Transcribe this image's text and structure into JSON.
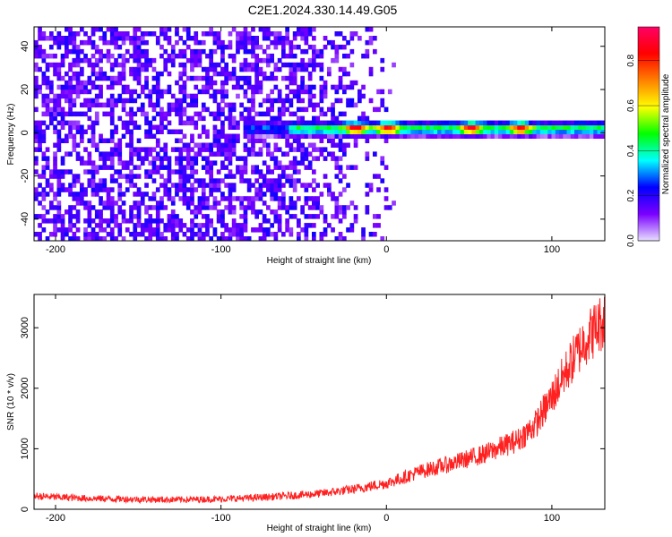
{
  "title": "C2E1.2024.330.14.49.G05",
  "chart_data": [
    {
      "type": "heatmap",
      "xlabel": "Height of straight line (km)",
      "ylabel": "Frequency (Hz)",
      "xlim": [
        -213,
        132
      ],
      "ylim": [
        -50,
        49
      ],
      "x_ticks": [
        -200,
        -100,
        0,
        100
      ],
      "x_tick_labels": [
        "-200",
        "-100",
        "0",
        "100"
      ],
      "y_ticks": [
        -40,
        -20,
        0,
        20,
        40
      ],
      "y_tick_labels": [
        "-40",
        "-20",
        "0",
        "20",
        "40"
      ],
      "colorbar": {
        "label": "Normalized spectral amplitude",
        "range": [
          0,
          0.95
        ],
        "ticks": [
          0.0,
          0.2,
          0.4,
          0.6,
          0.8
        ],
        "tick_labels": [
          "0.0",
          "0.2",
          "0.4",
          "0.6",
          "0.8"
        ],
        "colors": [
          "#e8e0ff",
          "#7a00ff",
          "#0000ff",
          "#00ffff",
          "#00ff00",
          "#ffff00",
          "#ff8000",
          "#ff0000",
          "#ff0066"
        ]
      },
      "signal_band": {
        "center_frequency_hz": 1,
        "start_height_km": -88,
        "end_height_km": 132,
        "peaks_km": [
          -20,
          0,
          50,
          80
        ]
      },
      "noise_region": {
        "from_km": -213,
        "to_km": -60,
        "fades_to_km": 10
      },
      "grid": false
    },
    {
      "type": "line",
      "xlabel": "Height of straight line (km)",
      "ylabel": "SNR (10 * v/v)",
      "xlim": [
        -213,
        132
      ],
      "ylim": [
        0,
        3550
      ],
      "x_ticks": [
        -200,
        -100,
        0,
        100
      ],
      "x_tick_labels": [
        "-200",
        "-100",
        "0",
        "100"
      ],
      "y_ticks": [
        0,
        1000,
        2000,
        3000
      ],
      "y_tick_labels": [
        "0",
        "1000",
        "2000",
        "3000"
      ],
      "color": "#ff2020",
      "grid": false,
      "series": [
        {
          "x": [
            -213,
            -200,
            -180,
            -160,
            -140,
            -120,
            -100,
            -80,
            -60,
            -40,
            -20,
            0,
            10,
            20,
            40,
            60,
            80,
            90,
            100,
            110,
            120,
            132
          ],
          "y": [
            220,
            200,
            180,
            170,
            160,
            160,
            170,
            190,
            220,
            260,
            330,
            430,
            520,
            620,
            760,
            920,
            1150,
            1400,
            1850,
            2350,
            2800,
            3150
          ]
        }
      ]
    }
  ]
}
